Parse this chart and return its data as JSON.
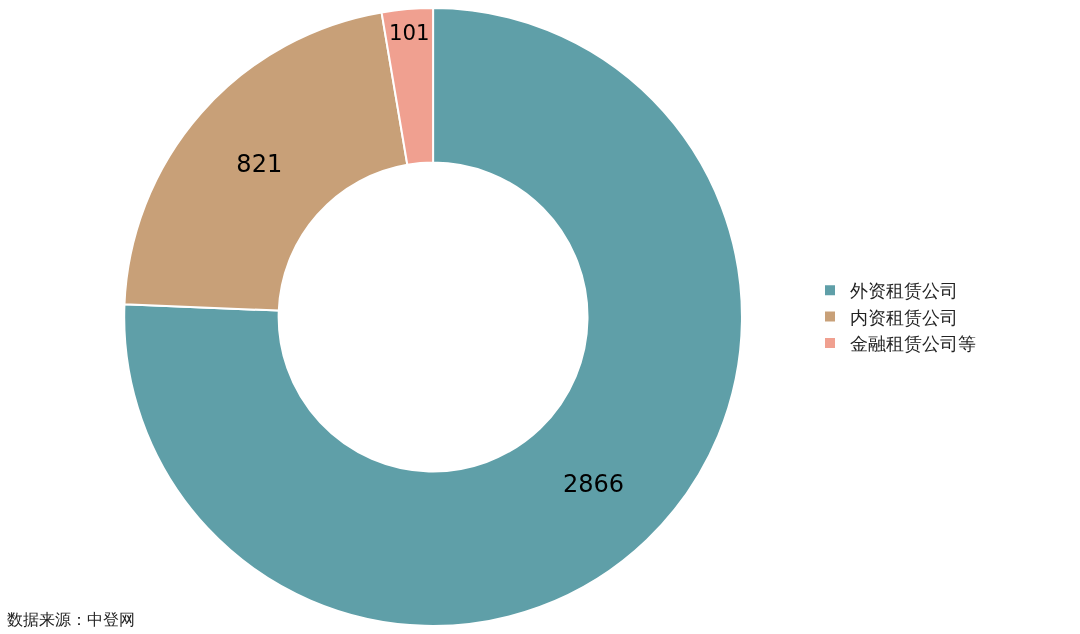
{
  "chart_data": {
    "type": "donut",
    "categories": [
      "外资租赁公司",
      "内资租赁公司",
      "金融租赁公司等"
    ],
    "values": [
      2866,
      821,
      101
    ],
    "colors": [
      "#5f9fa8",
      "#c8a078",
      "#f0a090"
    ],
    "data_labels": true,
    "legend": "right",
    "annotations": [
      "数据来源：中登网"
    ]
  }
}
